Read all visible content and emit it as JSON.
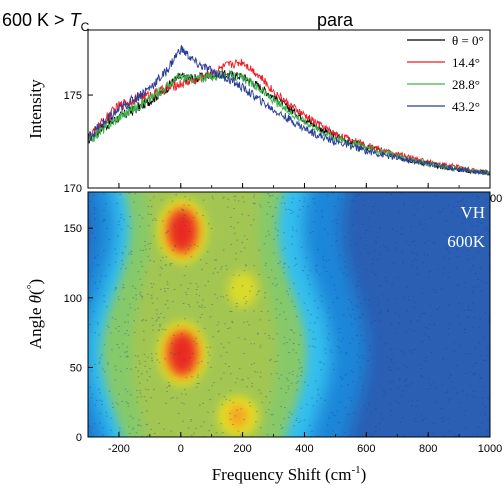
{
  "header": {
    "temp_label": "600 K > ",
    "tc_symbol": "T",
    "tc_subscript": "C",
    "phase_label": "para"
  },
  "chart_data": [
    {
      "type": "line",
      "ylabel": "Intensity",
      "xlim": [
        -300,
        1000
      ],
      "ylim": [
        170,
        178.5
      ],
      "xticks": [
        -200,
        0,
        200,
        400,
        600,
        800,
        1000
      ],
      "yticks": [
        170,
        175
      ],
      "legend_placement": "top-right",
      "series": [
        {
          "name": "θ = 0°",
          "color": "#000000",
          "x": [
            -300,
            -250,
            -200,
            -150,
            -100,
            -50,
            -20,
            0,
            20,
            50,
            100,
            150,
            200,
            250,
            300,
            350,
            400,
            450,
            500,
            600,
            700,
            800,
            900,
            1000
          ],
          "y": [
            172.6,
            173.3,
            173.8,
            174.2,
            174.7,
            175.3,
            175.8,
            176.0,
            175.9,
            175.9,
            176.1,
            176.1,
            176.0,
            175.5,
            174.9,
            174.3,
            173.7,
            173.2,
            172.8,
            172.2,
            171.7,
            171.3,
            171.0,
            170.8
          ]
        },
        {
          "name": "14.4°",
          "color": "#ee1c24",
          "x": [
            -300,
            -250,
            -200,
            -150,
            -100,
            -50,
            -20,
            0,
            20,
            50,
            100,
            150,
            200,
            250,
            300,
            350,
            400,
            450,
            500,
            600,
            700,
            800,
            900,
            1000
          ],
          "y": [
            172.6,
            173.6,
            174.4,
            174.8,
            175.0,
            175.3,
            175.5,
            175.6,
            175.7,
            175.8,
            176.2,
            176.6,
            176.8,
            176.1,
            175.2,
            174.5,
            173.9,
            173.4,
            172.9,
            172.3,
            171.8,
            171.4,
            171.1,
            170.8
          ]
        },
        {
          "name": "28.8°",
          "color": "#3cb54a",
          "x": [
            -300,
            -250,
            -200,
            -150,
            -100,
            -50,
            -20,
            0,
            20,
            50,
            100,
            150,
            200,
            250,
            300,
            350,
            400,
            450,
            500,
            600,
            700,
            800,
            900,
            1000
          ],
          "y": [
            172.5,
            173.2,
            173.8,
            174.3,
            174.8,
            175.4,
            175.8,
            176.0,
            175.9,
            175.9,
            176.0,
            176.1,
            175.9,
            175.4,
            174.7,
            174.1,
            173.6,
            173.1,
            172.7,
            172.2,
            171.7,
            171.3,
            171.0,
            170.8
          ]
        },
        {
          "name": "43.2°",
          "color": "#2b3e97",
          "x": [
            -300,
            -250,
            -200,
            -150,
            -100,
            -50,
            -20,
            0,
            20,
            50,
            100,
            150,
            200,
            250,
            300,
            350,
            400,
            450,
            500,
            600,
            700,
            800,
            900,
            1000
          ],
          "y": [
            172.7,
            173.5,
            174.2,
            174.8,
            175.4,
            176.2,
            177.0,
            177.5,
            177.2,
            176.7,
            176.3,
            175.9,
            175.4,
            174.8,
            174.2,
            173.7,
            173.2,
            172.8,
            172.5,
            172.0,
            171.6,
            171.3,
            171.0,
            170.8
          ]
        }
      ]
    },
    {
      "type": "heatmap",
      "xlabel": "Frequency Shift (cm",
      "xlabel_sup": "-1",
      "xlabel_end": ")",
      "ylabel": "Angle",
      "ylabel_symbol": "θ",
      "ylabel_unit_open": "(",
      "ylabel_unit": "°",
      "ylabel_unit_close": ")",
      "xlim": [
        -300,
        1000
      ],
      "ylim": [
        0,
        176
      ],
      "xticks": [
        -200,
        0,
        200,
        400,
        600,
        800,
        1000
      ],
      "yticks": [
        0,
        50,
        100,
        150
      ],
      "annotation_mode": "VH",
      "annotation_temp": "600K",
      "colors": [
        "#2a5fb4",
        "#1e86d8",
        "#35c0ee",
        "#86c96b",
        "#a3c653",
        "#e8e020",
        "#f5a623",
        "#e82a22"
      ],
      "hotspots": [
        {
          "x": 5,
          "y": 148,
          "level": 1.0
        },
        {
          "x": 5,
          "y": 60,
          "level": 1.0
        },
        {
          "x": 185,
          "y": 15,
          "level": 0.55
        },
        {
          "x": 200,
          "y": 106,
          "level": 0.35
        }
      ]
    }
  ]
}
